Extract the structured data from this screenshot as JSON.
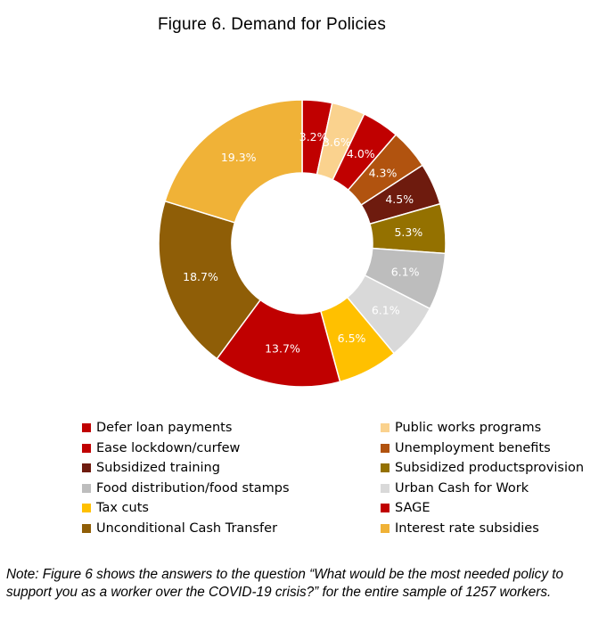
{
  "chart_data": {
    "type": "donut",
    "title": "Figure 6. Demand for Policies",
    "categories": [
      "Defer loan payments",
      "Public works programs",
      "Ease lockdown/curfew",
      "Unemployment benefits",
      "Subsidized training",
      "Subsidized productsprovision",
      "Food distribution/food stamps",
      "Urban Cash for Work",
      "Tax cuts",
      "SAGE",
      "Unconditional Cash Transfer",
      "Interest rate subsidies"
    ],
    "values": [
      3.2,
      3.6,
      4.0,
      4.3,
      4.5,
      5.3,
      6.1,
      6.1,
      6.5,
      13.7,
      18.7,
      19.3
    ],
    "labels": [
      "3.2%",
      "3.6%",
      "4.0%",
      "4.3%",
      "4.5%",
      "5.3%",
      "6.1%",
      "6.1%",
      "6.5%",
      "13.7%",
      "18.7%",
      "19.3%"
    ],
    "colors": [
      "#C00000",
      "#FAD28E",
      "#C00000",
      "#B1530F",
      "#6E1B0E",
      "#947100",
      "#BDBDBD",
      "#D9D9D9",
      "#FFC000",
      "#C00000",
      "#8F5E07",
      "#F0B237"
    ],
    "legend_position": "bottom"
  },
  "note": "Note: Figure 6 shows the answers to the question “What would be the most needed policy to support you as a worker over the COVID-19 crisis?” for the entire sample of 1257 workers."
}
